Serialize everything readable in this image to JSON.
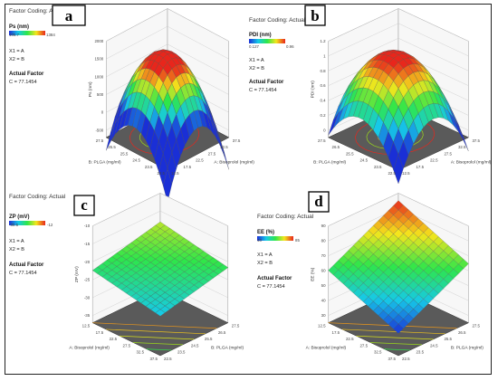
{
  "figure": {
    "panels": [
      {
        "letter": "a",
        "coding": "Factor Coding: Actual",
        "response": "Ps (nm)",
        "range_low": "105.7",
        "range_high": "1384",
        "x1": "X1 = A",
        "x2": "X2 = B",
        "actual_factor_label": "Actual Factor",
        "actual_factor": "C = 77.1454",
        "z_axis_label": "Ps (nm)",
        "x_axis_label": "A: Bisoprolol (mg/ml)",
        "y_axis_label": "B: PLGA (mg/ml)",
        "z_ticks": [
          "2000",
          "1500",
          "1000",
          "500",
          "0",
          "-500"
        ],
        "x_ticks": [
          "12.5",
          "17.5",
          "22.5",
          "27.5",
          "32.5",
          "37.5"
        ],
        "y_ticks": [
          "22.5",
          "23.5",
          "24.5",
          "25.5",
          "26.5",
          "27.5"
        ]
      },
      {
        "letter": "b",
        "coding": "Factor Coding: Actual",
        "response": "PDI (nm)",
        "range_low": "0.127",
        "range_high": "0.96",
        "x1": "X1 = A",
        "x2": "X2 = B",
        "actual_factor_label": "Actual Factor",
        "actual_factor": "C = 77.1454",
        "z_axis_label": "PDI (nm)",
        "x_axis_label": "A: Bisoprolol (mg/ml)",
        "y_axis_label": "B: PLGA (mg/ml)",
        "z_ticks": [
          "1.2",
          "1",
          "0.8",
          "0.6",
          "0.4",
          "0.2",
          "0"
        ],
        "x_ticks": [
          "12.5",
          "17.5",
          "22.5",
          "27.5",
          "32.5",
          "37.5"
        ],
        "y_ticks": [
          "22.5",
          "23.5",
          "24.5",
          "25.5",
          "26.5",
          "27.5"
        ]
      },
      {
        "letter": "c",
        "coding": "Factor Coding: Actual",
        "response": "ZP (mV)",
        "range_low": "-30.5",
        "range_high": "-12",
        "x1": "X1 = A",
        "x2": "X2 = B",
        "actual_factor_label": "Actual Factor",
        "actual_factor": "C = 77.1454",
        "z_axis_label": "ZP (mV)",
        "x_axis_label": "A: Bisoprolol (mg/ml)",
        "y_axis_label": "B: PLGA (mg/ml)",
        "z_ticks": [
          "-10",
          "-15",
          "-20",
          "-25",
          "-30",
          "-35"
        ],
        "x_ticks": [
          "37.5",
          "32.5",
          "27.5",
          "22.5",
          "17.5",
          "12.5"
        ],
        "y_ticks": [
          "22.5",
          "23.5",
          "24.5",
          "25.5",
          "26.5",
          "27.5"
        ]
      },
      {
        "letter": "d",
        "coding": "Factor Coding: Actual",
        "response": "EE (%)",
        "range_low": "40",
        "range_high": "85",
        "x1": "X1 = A",
        "x2": "X2 = B",
        "actual_factor_label": "Actual Factor",
        "actual_factor": "C = 77.1454",
        "z_axis_label": "EE (%)",
        "x_axis_label": "A: Bisoprolol (mg/ml)",
        "y_axis_label": "B: PLGA (mg/ml)",
        "z_ticks": [
          "90",
          "80",
          "70",
          "60",
          "50",
          "40",
          "30"
        ],
        "x_ticks": [
          "37.5",
          "32.5",
          "27.5",
          "22.5",
          "17.5",
          "12.5"
        ],
        "y_ticks": [
          "22.5",
          "23.5",
          "24.5",
          "25.5",
          "26.5",
          "27.5"
        ]
      }
    ]
  },
  "chart_data": [
    {
      "type": "surface",
      "panel": "a",
      "z_label": "Ps (nm)",
      "x_label": "A: Bisoprolol (mg/ml)",
      "y_label": "B: PLGA (mg/ml)",
      "x_range": [
        12.5,
        37.5
      ],
      "y_range": [
        22.5,
        27.5
      ],
      "z_range": [
        -500,
        2000
      ],
      "color_range": [
        105.7,
        1384
      ],
      "shape": "dome",
      "z_center": 1650,
      "z_corner_min": -400
    },
    {
      "type": "surface",
      "panel": "b",
      "z_label": "PDI (nm)",
      "x_label": "A: Bisoprolol (mg/ml)",
      "y_label": "B: PLGA (mg/ml)",
      "x_range": [
        12.5,
        37.5
      ],
      "y_range": [
        22.5,
        27.5
      ],
      "z_range": [
        0,
        1.2
      ],
      "color_range": [
        0.127,
        0.96
      ],
      "shape": "dome",
      "z_center": 1.02,
      "z_corner_min": 0.2
    },
    {
      "type": "surface",
      "panel": "c",
      "z_label": "ZP (mV)",
      "x_label": "A: Bisoprolol (mg/ml)",
      "y_label": "B: PLGA (mg/ml)",
      "x_range": [
        12.5,
        37.5
      ],
      "y_range": [
        22.5,
        27.5
      ],
      "z_range": [
        -35,
        -10
      ],
      "color_range": [
        -30.5,
        -12
      ],
      "shape": "plane",
      "z_low_corner": -26,
      "z_high_corner": -18
    },
    {
      "type": "surface",
      "panel": "d",
      "z_label": "EE (%)",
      "x_label": "A: Bisoprolol (mg/ml)",
      "y_label": "B: PLGA (mg/ml)",
      "x_range": [
        12.5,
        37.5
      ],
      "y_range": [
        22.5,
        27.5
      ],
      "z_range": [
        30,
        90
      ],
      "color_range": [
        40,
        85
      ],
      "shape": "plane",
      "z_low_corner": 40,
      "z_high_corner": 85
    }
  ]
}
